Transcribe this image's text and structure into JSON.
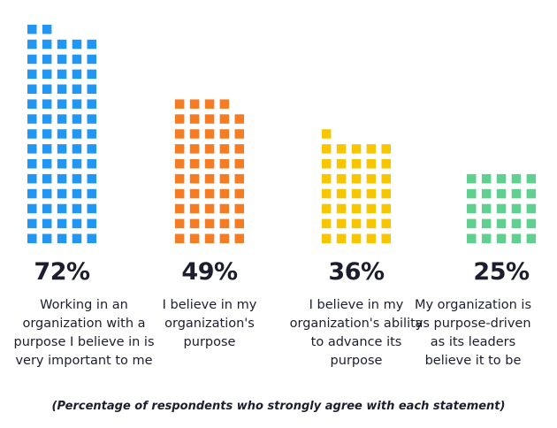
{
  "chart_data": {
    "type": "bar",
    "categories": [
      "Working in an\norganization with a\npurpose I believe in is\nvery important to me",
      "I believe in my\norganization's\npurpose",
      "I believe in my\norganization's ability\nto advance its\npurpose",
      "My organization is\nas purpose-driven\nas its leaders\nbelieve it to be"
    ],
    "values": [
      72,
      49,
      36,
      25
    ],
    "value_labels": [
      "72%",
      "49%",
      "36%",
      "25%"
    ],
    "colors": [
      "#2196f3",
      "#f57c22",
      "#f7c600",
      "#5fd08f"
    ],
    "unit": "%",
    "note": "(Percentage of respondents who strongly agree with each statement)"
  }
}
